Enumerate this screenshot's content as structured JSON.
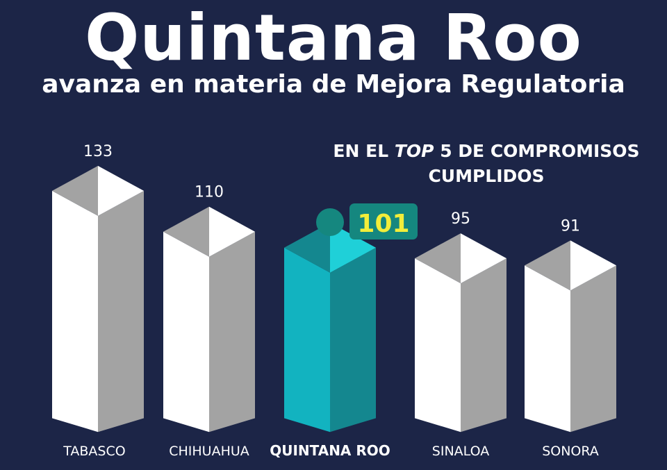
{
  "header": {
    "title": "Quintana Roo",
    "subtitle": "avanza en materia de Mejora Regulatoria"
  },
  "callout": {
    "line1_start": "EN EL ",
    "line1_em": "TOP",
    "line1_end": " 5 DE COMPROMISOS",
    "line2": "CUMPLIDOS"
  },
  "colors": {
    "background": "#1c2547",
    "bar_front": "#ffffff",
    "bar_side": "#a3a3a3",
    "highlight_front": "#12b3c0",
    "highlight_side": "#14878f",
    "highlight_top": "#1fd0d8",
    "badge_bg": "#15877f",
    "badge_text": "#f2ed3a"
  },
  "chart_data": {
    "type": "bar",
    "categories": [
      "TABASCO",
      "CHIHUAHUA",
      "QUINTANA ROO",
      "SINALOA",
      "SONORA"
    ],
    "values": [
      133,
      110,
      101,
      95,
      91
    ],
    "highlight": "QUINTANA ROO",
    "title": "Quintana Roo",
    "subtitle": "avanza en materia de Mejora Regulatoria"
  }
}
